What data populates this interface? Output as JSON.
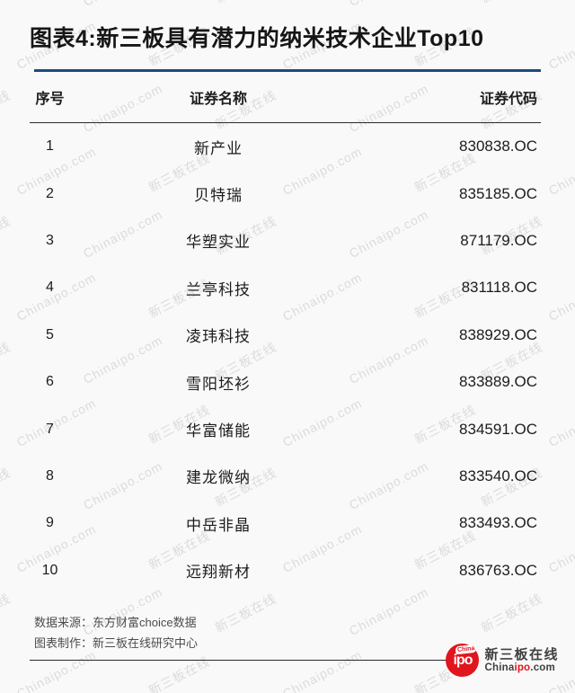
{
  "page": {
    "background": "#f9f9f9",
    "accent_line_color": "#1f4a7d",
    "rule_color": "#2a2a2a"
  },
  "title": "图表4:新三板具有潜力的纳米技术企业Top10",
  "chart_data": {
    "type": "table",
    "title": "图表4:新三板具有潜力的纳米技术企业Top10",
    "columns": [
      "序号",
      "证券名称",
      "证券代码"
    ],
    "rows": [
      [
        "1",
        "新产业",
        "830838.OC"
      ],
      [
        "2",
        "贝特瑞",
        "835185.OC"
      ],
      [
        "3",
        "华塑实业",
        "871179.OC"
      ],
      [
        "4",
        "兰亭科技",
        "831118.OC"
      ],
      [
        "5",
        "凌玮科技",
        "838929.OC"
      ],
      [
        "6",
        "雪阳坯衫",
        "833889.OC"
      ],
      [
        "7",
        "华富储能",
        "834591.OC"
      ],
      [
        "8",
        "建龙微纳",
        "833540.OC"
      ],
      [
        "9",
        "中岳非晶",
        "833493.OC"
      ],
      [
        "10",
        "远翔新材",
        "836763.OC"
      ]
    ],
    "source_note": "数据来源：东方财富choice数据",
    "maker_note": "图表制作：新三板在线研究中心"
  },
  "footer": {
    "source": "数据来源：东方财富choice数据",
    "maker": "图表制作：新三板在线研究中心"
  },
  "watermark": {
    "texts": [
      "新三板在线",
      "Chinaipo.com"
    ],
    "color": "rgba(125,125,125,0.24)"
  },
  "logo": {
    "badge_text": "ipo",
    "badge_bubble": "China",
    "name": "新三板在线",
    "site_prefix": "China",
    "site_mid": "ipo",
    "site_suffix": ".com",
    "red": "#e0151d"
  }
}
